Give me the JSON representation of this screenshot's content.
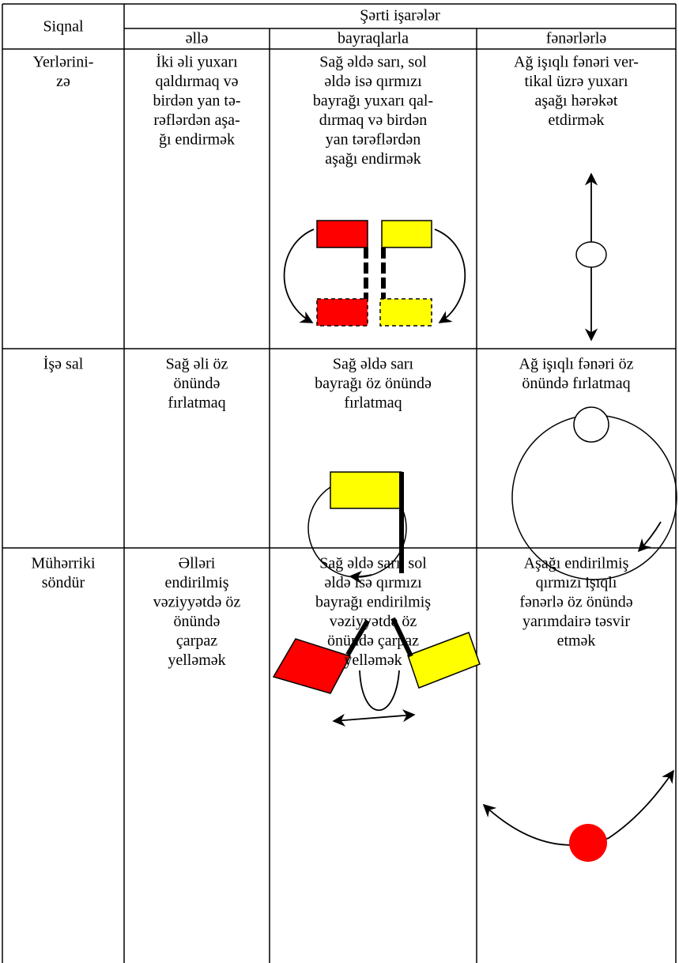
{
  "header": {
    "signal": "Siqnal",
    "group": "Şərti işarələr",
    "columns": [
      "əllə",
      "bayraqlarla",
      "fənərlərlə"
    ]
  },
  "rows": [
    {
      "signal": [
        "Yerlərini-",
        "zə"
      ],
      "hand": [
        "İki əli yuxarı",
        "qaldırmaq və",
        "birdən yan tə-",
        "rəflərdən aşa-",
        "ğı endirmək"
      ],
      "flags": [
        "Sağ əldə sarı, sol",
        "əldə isə qırmızı",
        "bayrağı yuxarı qal-",
        "dırmaq və birdən",
        "yan tərəflərdən",
        "aşağı endirmək"
      ],
      "lights": [
        "Ağ işıqlı fənəri ver-",
        "tikal üzrə yuxarı",
        "aşağı hərəkət",
        "etdirmək"
      ]
    },
    {
      "signal": [
        "İşə sal"
      ],
      "hand": [
        "Sağ əli öz",
        "önündə",
        "fırlatmaq"
      ],
      "flags": [
        "Sağ əldə sarı",
        "bayrağı öz önündə",
        "fırlatmaq"
      ],
      "lights": [
        "Ağ işıqlı fənəri öz",
        "önündə fırlatmaq"
      ]
    },
    {
      "signal": [
        "Mühərriki",
        "söndür"
      ],
      "hand": [
        "Əlləri",
        "endirilmiş",
        "vəziyyətdə öz",
        "önündə",
        "çarpaz",
        "yelləmək"
      ],
      "flags": [
        "Sağ əldə sarı, sol",
        "əldə isə qırmızı",
        "bayrağı endirilmiş",
        "vəziyyətdə öz",
        "önündə çarpaz",
        "yelləmək"
      ],
      "lights": [
        "Aşağı endirilmiş",
        "qırmızı işıqlı",
        "fənərlə öz önündə",
        "yarımdairə təsvir",
        "etmək"
      ]
    }
  ]
}
